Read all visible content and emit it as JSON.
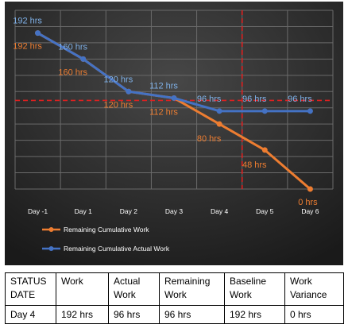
{
  "chart_data": {
    "type": "line",
    "categories": [
      "Day -1",
      "Day 1",
      "Day 2",
      "Day 3",
      "Day 4",
      "Day 5",
      "Day 6"
    ],
    "ylim": [
      0,
      220
    ],
    "grid": true,
    "legend_position": "bottom-left",
    "series": [
      {
        "name": "Remaining Cumulative Work",
        "color": "#ed7d31",
        "values": [
          192,
          160,
          120,
          112,
          80,
          48,
          0
        ],
        "labels": [
          "192 hrs",
          "160 hrs",
          "120 hrs",
          "112 hrs",
          "80 hrs",
          "48 hrs",
          "0 hrs"
        ]
      },
      {
        "name": "Remaining Cumulative Actual Work",
        "color": "#4472c4",
        "label_color": "#7fb1e8",
        "values": [
          192,
          160,
          120,
          112,
          96,
          96,
          96
        ],
        "labels": [
          "192 hrs",
          "160 hrs",
          "120 hrs",
          "112 hrs",
          "96 hrs",
          "96 hrs",
          "96 hrs"
        ]
      }
    ],
    "annotations": [
      {
        "type": "vertical-line",
        "at": "Day 4",
        "color": "#e02020",
        "style": "dashed"
      },
      {
        "type": "horizontal-line",
        "value": 112,
        "color": "#e02020",
        "style": "dashed"
      }
    ],
    "background_colors": {
      "plot_top": "#3d3d3d",
      "plot_bottom": "#1c1c1c"
    }
  },
  "status_table": {
    "headers": [
      [
        "STATUS",
        "DATE"
      ],
      [
        "Work"
      ],
      [
        "Actual",
        "Work"
      ],
      [
        "Remaining",
        "Work"
      ],
      [
        "Baseline",
        "Work"
      ],
      [
        "Work",
        "Variance"
      ]
    ],
    "values": [
      "Day 4",
      "192 hrs",
      "96 hrs",
      "96 hrs",
      "192 hrs",
      "0 hrs"
    ]
  }
}
